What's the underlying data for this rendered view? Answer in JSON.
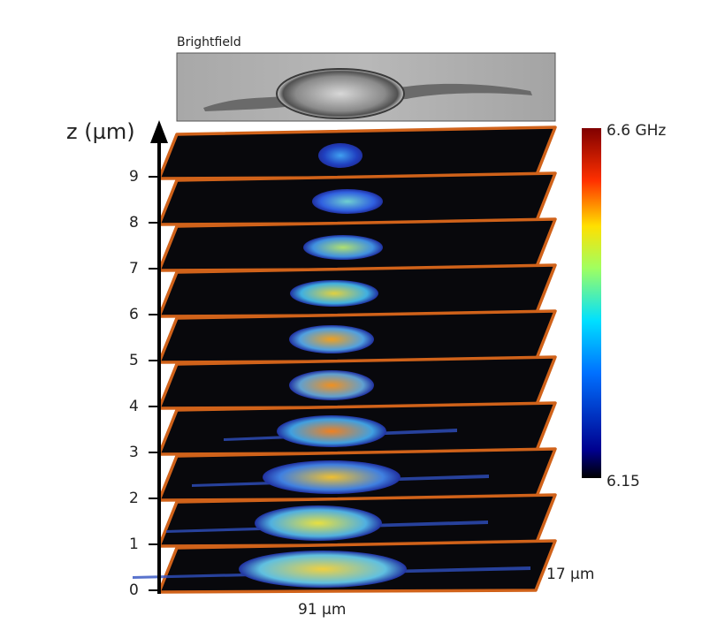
{
  "brightfield_label": "Brightfield",
  "z_axis": {
    "label": "z (µm)",
    "ticks": [
      "0",
      "1",
      "2",
      "3",
      "4",
      "5",
      "6",
      "7",
      "8",
      "9"
    ]
  },
  "colorbar": {
    "max_label": "6.6 GHz",
    "min_label": "6.15"
  },
  "scale": {
    "depth": "17 µm",
    "width": "91 µm"
  }
}
